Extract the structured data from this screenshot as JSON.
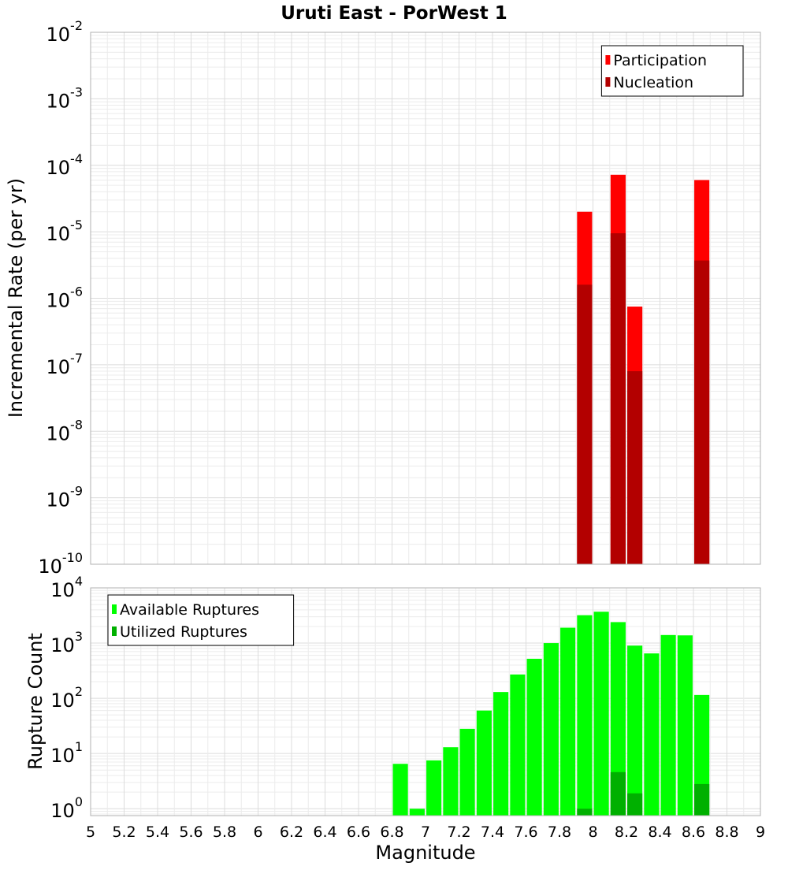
{
  "chart_data": [
    {
      "type": "bar",
      "title": "Uruti East - PorWest 1",
      "ylabel": "Incremental Rate (per yr)",
      "xlabel": "",
      "y_scale": "log",
      "ylim": [
        1e-10,
        0.01
      ],
      "xlim": [
        5,
        9
      ],
      "y_ticks": [
        {
          "base": "10",
          "exp": "-10"
        },
        {
          "base": "10",
          "exp": "-9"
        },
        {
          "base": "10",
          "exp": "-8"
        },
        {
          "base": "10",
          "exp": "-7"
        },
        {
          "base": "10",
          "exp": "-6"
        },
        {
          "base": "10",
          "exp": "-5"
        },
        {
          "base": "10",
          "exp": "-4"
        },
        {
          "base": "10",
          "exp": "-3"
        },
        {
          "base": "10",
          "exp": "-2"
        }
      ],
      "grid": true,
      "legend_position": "top-right",
      "bar_width": 0.09,
      "series": [
        {
          "name": "Participation",
          "color": "#ff0000",
          "points": [
            [
              7.95,
              2e-05
            ],
            [
              8.15,
              7.2e-05
            ],
            [
              8.25,
              7.5e-07
            ],
            [
              8.65,
              6e-05
            ]
          ]
        },
        {
          "name": "Nucleation",
          "color": "#b30000",
          "points": [
            [
              7.95,
              1.6e-06
            ],
            [
              8.15,
              9.5e-06
            ],
            [
              8.25,
              8e-08
            ],
            [
              8.65,
              3.7e-06
            ]
          ]
        }
      ]
    },
    {
      "type": "bar",
      "title": "",
      "ylabel": "Rupture Count",
      "xlabel": "Magnitude",
      "y_scale": "log",
      "ylim": [
        0.75,
        10000
      ],
      "xlim": [
        5,
        9
      ],
      "y_ticks": [
        {
          "base": "10",
          "exp": "0"
        },
        {
          "base": "10",
          "exp": "1"
        },
        {
          "base": "10",
          "exp": "2"
        },
        {
          "base": "10",
          "exp": "3"
        },
        {
          "base": "10",
          "exp": "4"
        }
      ],
      "x_ticks": [
        "5",
        "5.2",
        "5.4",
        "5.6",
        "5.8",
        "6",
        "6.2",
        "6.4",
        "6.6",
        "6.8",
        "7",
        "7.2",
        "7.4",
        "7.6",
        "7.8",
        "8",
        "8.2",
        "8.4",
        "8.6",
        "8.8",
        "9"
      ],
      "grid": true,
      "legend_position": "top-left",
      "bar_width": 0.09,
      "series": [
        {
          "name": "Available Ruptures",
          "color": "#00ff00",
          "points": [
            [
              6.85,
              6.5
            ],
            [
              6.95,
              1
            ],
            [
              7.05,
              7.5
            ],
            [
              7.15,
              13
            ],
            [
              7.25,
              28
            ],
            [
              7.35,
              60
            ],
            [
              7.45,
              130
            ],
            [
              7.55,
              270
            ],
            [
              7.65,
              520
            ],
            [
              7.75,
              1000
            ],
            [
              7.85,
              1900
            ],
            [
              7.95,
              3200
            ],
            [
              8.05,
              3700
            ],
            [
              8.15,
              2400
            ],
            [
              8.25,
              900
            ],
            [
              8.35,
              650
            ],
            [
              8.45,
              1400
            ],
            [
              8.55,
              1380
            ],
            [
              8.65,
              115
            ]
          ]
        },
        {
          "name": "Utilized Ruptures",
          "color": "#00b000",
          "points": [
            [
              7.95,
              1
            ],
            [
              8.15,
              4.6
            ],
            [
              8.25,
              1.9
            ],
            [
              8.65,
              2.8
            ]
          ]
        }
      ]
    }
  ]
}
